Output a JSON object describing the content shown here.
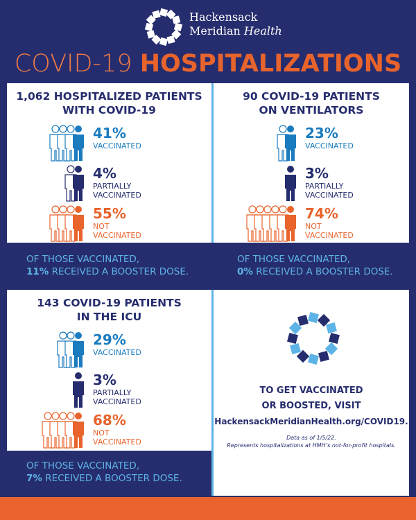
{
  "header": {
    "brand_line1": "Hackensack",
    "brand_line2": "Meridian",
    "brand_line2_italic": "Health",
    "title_light": "COVID-19",
    "title_bold": "HOSPITALIZATIONS"
  },
  "panels": [
    {
      "title": [
        "1,062 HOSPITALIZED PATIENTS",
        "WITH COVID-19"
      ],
      "stats": [
        {
          "percent": "41%",
          "label": [
            "VACCINATED"
          ]
        },
        {
          "percent": "4%",
          "label": [
            "PARTIALLY",
            "VACCINATED"
          ]
        },
        {
          "percent": "55%",
          "label": [
            "NOT",
            "VACCINATED"
          ]
        }
      ],
      "booster": {
        "line1": "OF THOSE VACCINATED,",
        "percent": "11%",
        "rest": "RECEIVED A BOOSTER DOSE."
      }
    },
    {
      "title": [
        "90 COVID-19 PATIENTS",
        "ON VENTILATORS"
      ],
      "stats": [
        {
          "percent": "23%",
          "label": [
            "VACCINATED"
          ]
        },
        {
          "percent": "3%",
          "label": [
            "PARTIALLY",
            "VACCINATED"
          ]
        },
        {
          "percent": "74%",
          "label": [
            "NOT",
            "VACCINATED"
          ]
        }
      ],
      "booster": {
        "line1": "OF THOSE VACCINATED,",
        "percent": "0%",
        "rest": "RECEIVED A BOOSTER DOSE."
      }
    },
    {
      "title": [
        "143 COVID-19 PATIENTS",
        "IN THE ICU"
      ],
      "stats": [
        {
          "percent": "29%",
          "label": [
            "VACCINATED"
          ]
        },
        {
          "percent": "3%",
          "label": [
            "PARTIALLY",
            "VACCINATED"
          ]
        },
        {
          "percent": "68%",
          "label": [
            "NOT",
            "VACCINATED"
          ]
        }
      ],
      "booster": {
        "line1": "OF THOSE VACCINATED,",
        "percent": "7%",
        "rest": "RECEIVED A BOOSTER DOSE."
      }
    }
  ],
  "cta": {
    "lines": [
      "TO GET VACCINATED",
      "OR BOOSTED, VISIT",
      "HackensackMeridianHealth.org/COVID19."
    ],
    "note": [
      "Data as of 1/5/22.",
      "Represents hospitalizations at HMH’s not-for-profit hospitals."
    ]
  }
}
